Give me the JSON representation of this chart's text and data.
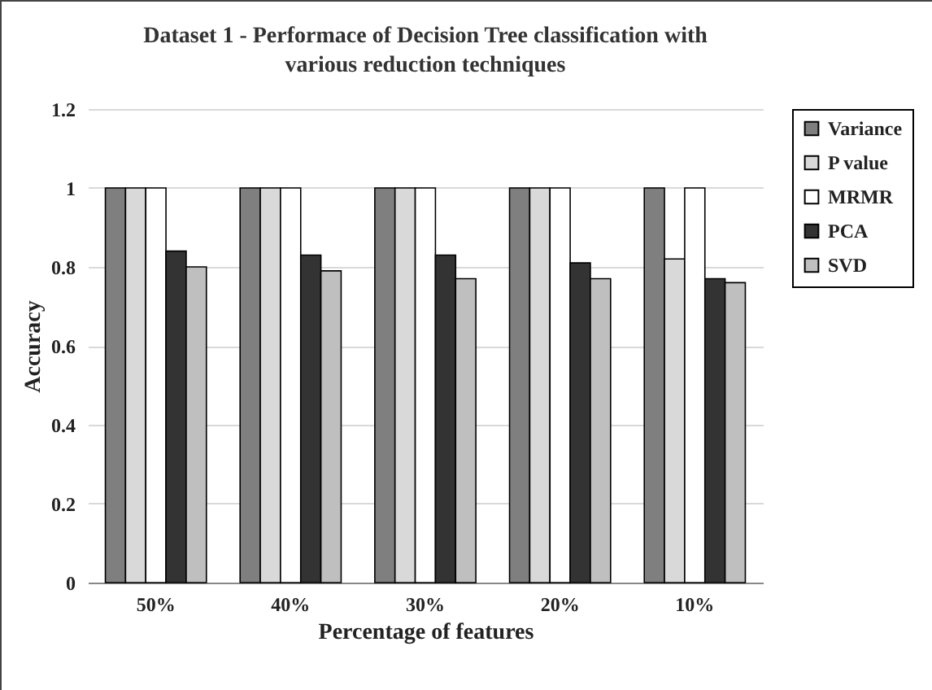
{
  "chart_data": {
    "type": "bar",
    "title": "Dataset 1 - Performace of Decision Tree classification with various reduction techniques",
    "xlabel": "Percentage of features",
    "ylabel": "Accuracy",
    "categories": [
      "50%",
      "40%",
      "30%",
      "20%",
      "10%"
    ],
    "series": [
      {
        "name": "Variance",
        "color": "#7f7f7f",
        "values": [
          1,
          1,
          1,
          1,
          1
        ]
      },
      {
        "name": "P value",
        "color": "#d9d9d9",
        "values": [
          1,
          1,
          1,
          1,
          0.82
        ]
      },
      {
        "name": "MRMR",
        "color": "#ffffff",
        "values": [
          1,
          1,
          1,
          1,
          1
        ]
      },
      {
        "name": "PCA",
        "color": "#333333",
        "values": [
          0.84,
          0.83,
          0.83,
          0.81,
          0.77
        ]
      },
      {
        "name": "SVD",
        "color": "#bfbfbf",
        "values": [
          0.8,
          0.79,
          0.77,
          0.77,
          0.76
        ]
      }
    ],
    "ylim": [
      0,
      1.2
    ],
    "yticks": [
      0,
      0.2,
      0.4,
      0.6,
      0.8,
      1,
      1.2
    ],
    "grid": "y",
    "legend": "right"
  }
}
